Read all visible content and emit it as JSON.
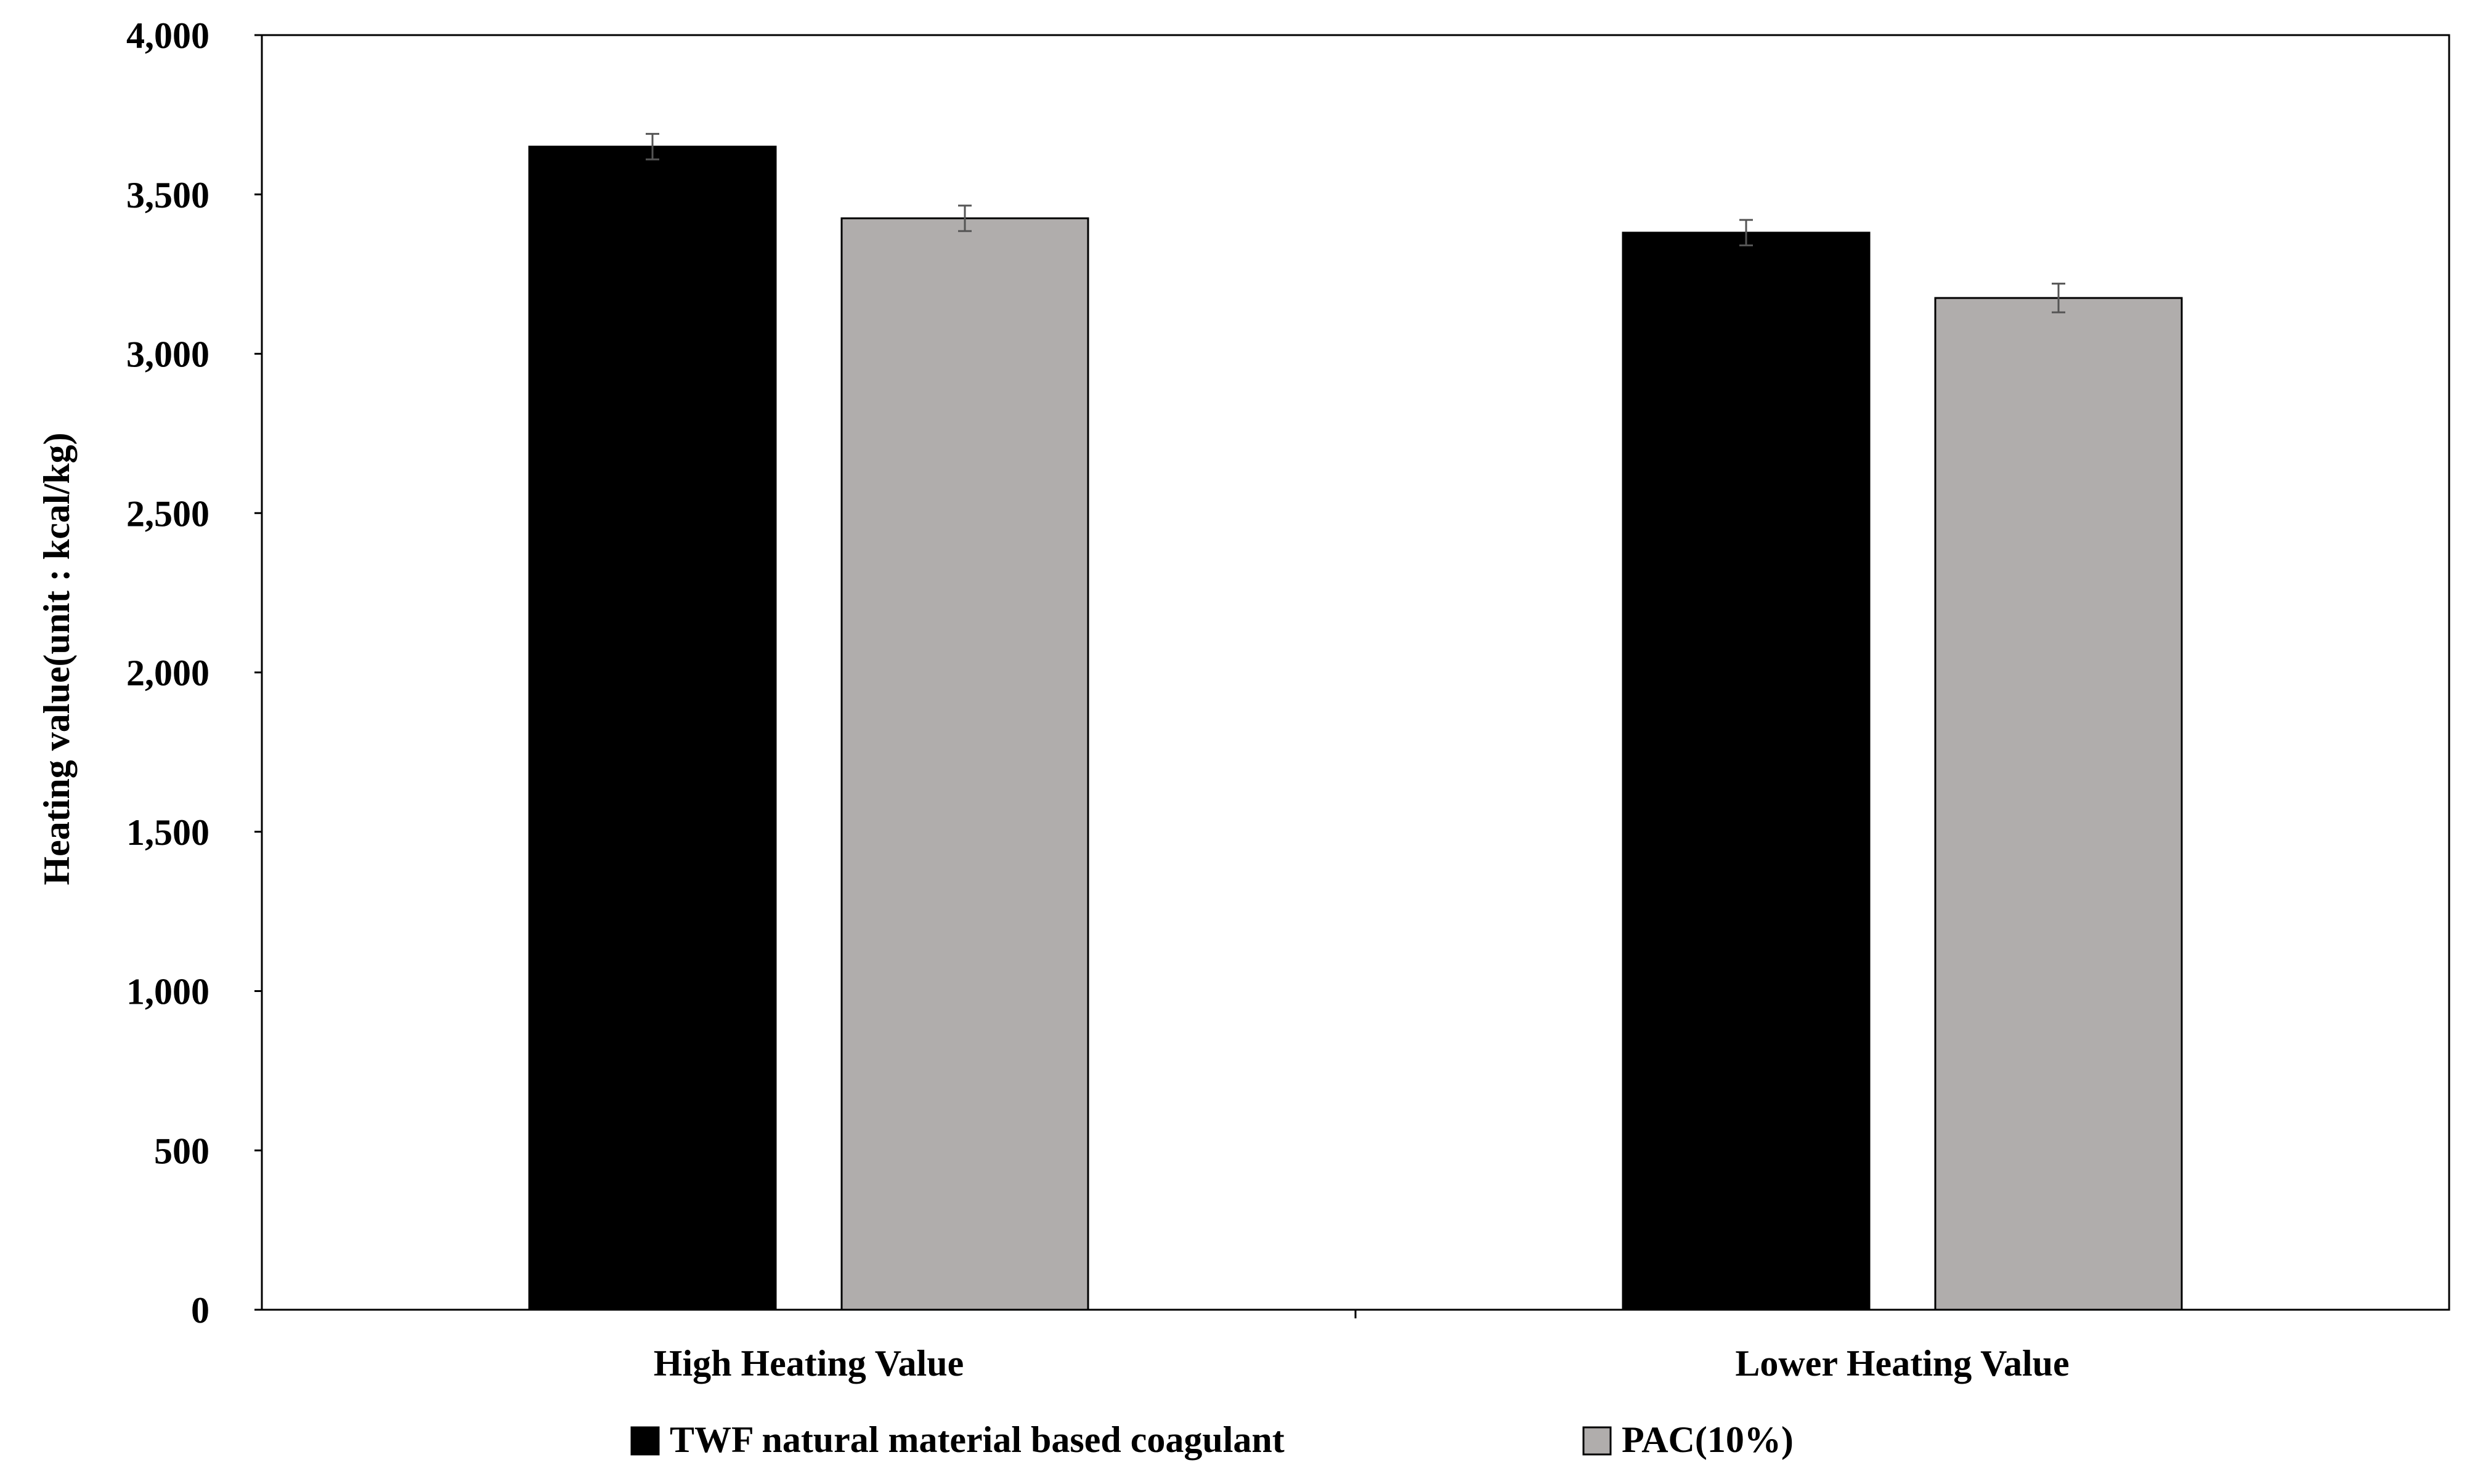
{
  "chart_data": {
    "type": "bar",
    "title": "",
    "xlabel": "",
    "ylabel": "Heating value(unit : kcal/kg)",
    "ylim": [
      0,
      4000
    ],
    "yticks": [
      0,
      500,
      1000,
      1500,
      2000,
      2500,
      3000,
      3500,
      4000
    ],
    "ytick_labels": [
      "0",
      "500",
      "1,000",
      "1,500",
      "2,000",
      "2,500",
      "3,000",
      "3,500",
      "4,000"
    ],
    "categories": [
      "High Heating Value",
      "Lower Heating Value"
    ],
    "series": [
      {
        "name": "TWF natural material based coagulant",
        "color": "#000000",
        "values": [
          3650,
          3380
        ],
        "errors": [
          40,
          40
        ]
      },
      {
        "name": "PAC(10%)",
        "color": "#b0adac",
        "values": [
          3425,
          3175
        ],
        "errors": [
          40,
          45
        ]
      }
    ],
    "grid": false,
    "legend_position": "bottom"
  }
}
